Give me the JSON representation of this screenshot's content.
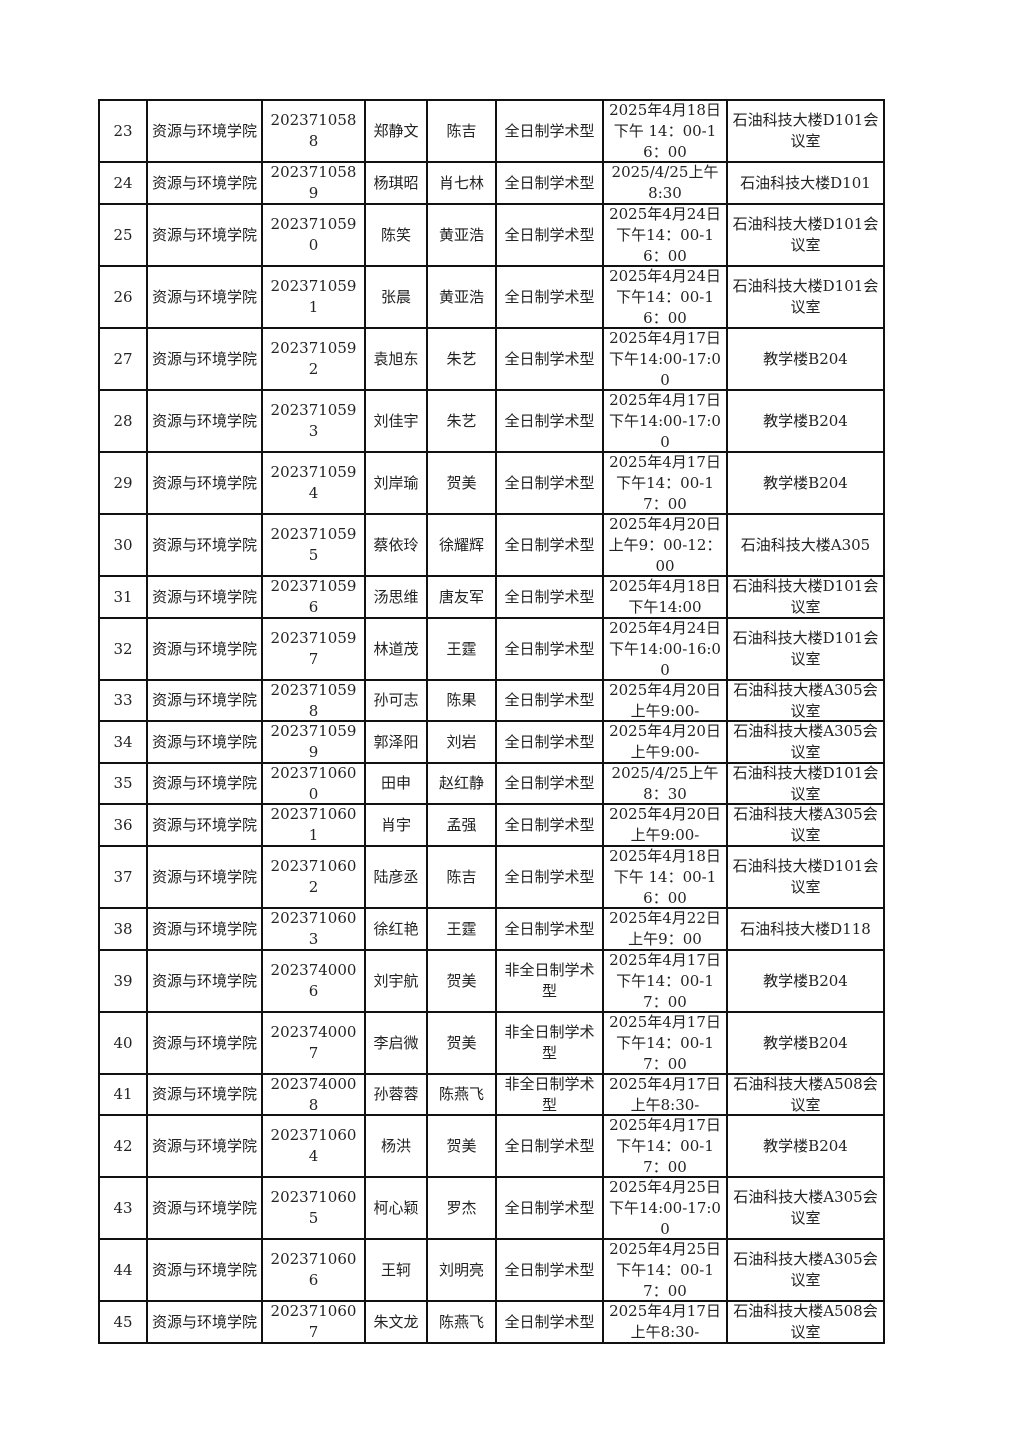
{
  "table": {
    "rows": [
      {
        "no": "23",
        "college": "资源与环境学院",
        "id": "2023710588",
        "name": "郑静文",
        "advisor": "陈吉",
        "type": "全日制学术型",
        "time": "2025年4月18日下午 14：00-16：00",
        "place": "石油科技大楼D101会议室"
      },
      {
        "no": "24",
        "college": "资源与环境学院",
        "id": "2023710589",
        "name": "杨琪昭",
        "advisor": "肖七林",
        "type": "全日制学术型",
        "time": "2025/4/25上午8:30",
        "place": "石油科技大楼D101"
      },
      {
        "no": "25",
        "college": "资源与环境学院",
        "id": "2023710590",
        "name": "陈笑",
        "advisor": "黄亚浩",
        "type": "全日制学术型",
        "time": "2025年4月24日下午14：00-16：00",
        "place": "石油科技大楼D101会议室"
      },
      {
        "no": "26",
        "college": "资源与环境学院",
        "id": "2023710591",
        "name": "张晨",
        "advisor": "黄亚浩",
        "type": "全日制学术型",
        "time": "2025年4月24日下午14：00-16：00",
        "place": "石油科技大楼D101会议室"
      },
      {
        "no": "27",
        "college": "资源与环境学院",
        "id": "2023710592",
        "name": "袁旭东",
        "advisor": "朱艺",
        "type": "全日制学术型",
        "time": "2025年4月17日下午14:00-17:00",
        "place": "教学楼B204"
      },
      {
        "no": "28",
        "college": "资源与环境学院",
        "id": "2023710593",
        "name": "刘佳宇",
        "advisor": "朱艺",
        "type": "全日制学术型",
        "time": "2025年4月17日下午14:00-17:00",
        "place": "教学楼B204"
      },
      {
        "no": "29",
        "college": "资源与环境学院",
        "id": "2023710594",
        "name": "刘岸瑜",
        "advisor": "贺美",
        "type": "全日制学术型",
        "time": "2025年4月17日下午14：00-17：00",
        "place": "教学楼B204"
      },
      {
        "no": "30",
        "college": "资源与环境学院",
        "id": "2023710595",
        "name": "蔡依玲",
        "advisor": "徐耀辉",
        "type": "全日制学术型",
        "time": "2025年4月20日上午9：00-12：00",
        "place": "石油科技大楼A305"
      },
      {
        "no": "31",
        "college": "资源与环境学院",
        "id": "2023710596",
        "name": "汤思维",
        "advisor": "唐友军",
        "type": "全日制学术型",
        "time": "2025年4月18日下午14:00",
        "place": "石油科技大楼D101会议室"
      },
      {
        "no": "32",
        "college": "资源与环境学院",
        "id": "2023710597",
        "name": "林道茂",
        "advisor": "王霆",
        "type": "全日制学术型",
        "time": "2025年4月24日下午14:00-16:00",
        "place": "石油科技大楼D101会议室"
      },
      {
        "no": "33",
        "college": "资源与环境学院",
        "id": "2023710598",
        "name": "孙可志",
        "advisor": "陈果",
        "type": "全日制学术型",
        "time": "2025年4月20日上午9:00-",
        "place": "石油科技大楼A305会议室"
      },
      {
        "no": "34",
        "college": "资源与环境学院",
        "id": "2023710599",
        "name": "郭泽阳",
        "advisor": "刘岩",
        "type": "全日制学术型",
        "time": "2025年4月20日上午9:00-",
        "place": "石油科技大楼A305会议室"
      },
      {
        "no": "35",
        "college": "资源与环境学院",
        "id": "2023710600",
        "name": "田申",
        "advisor": "赵红静",
        "type": "全日制学术型",
        "time": "2025/4/25上午8：30",
        "place": "石油科技大楼D101会议室"
      },
      {
        "no": "36",
        "college": "资源与环境学院",
        "id": "2023710601",
        "name": "肖宇",
        "advisor": "孟强",
        "type": "全日制学术型",
        "time": "2025年4月20日上午9:00-",
        "place": "石油科技大楼A305会议室"
      },
      {
        "no": "37",
        "college": "资源与环境学院",
        "id": "2023710602",
        "name": "陆彦丞",
        "advisor": "陈吉",
        "type": "全日制学术型",
        "time": "2025年4月18日下午 14：00-16：00",
        "place": "石油科技大楼D101会议室"
      },
      {
        "no": "38",
        "college": "资源与环境学院",
        "id": "2023710603",
        "name": "徐红艳",
        "advisor": "王霆",
        "type": "全日制学术型",
        "time": "2025年4月22日上午9：00",
        "place": "石油科技大楼D118"
      },
      {
        "no": "39",
        "college": "资源与环境学院",
        "id": "2023740006",
        "name": "刘宇航",
        "advisor": "贺美",
        "type": "非全日制学术型",
        "time": "2025年4月17日下午14：00-17：00",
        "place": "教学楼B204"
      },
      {
        "no": "40",
        "college": "资源与环境学院",
        "id": "2023740007",
        "name": "李启微",
        "advisor": "贺美",
        "type": "非全日制学术型",
        "time": "2025年4月17日下午14：00-17：00",
        "place": "教学楼B204"
      },
      {
        "no": "41",
        "college": "资源与环境学院",
        "id": "2023740008",
        "name": "孙蓉蓉",
        "advisor": "陈燕飞",
        "type": "非全日制学术型",
        "time": "2025年4月17日上午8:30-",
        "place": "石油科技大楼A508会议室"
      },
      {
        "no": "42",
        "college": "资源与环境学院",
        "id": "2023710604",
        "name": "杨洪",
        "advisor": "贺美",
        "type": "全日制学术型",
        "time": "2025年4月17日下午14：00-17：00",
        "place": "教学楼B204"
      },
      {
        "no": "43",
        "college": "资源与环境学院",
        "id": "2023710605",
        "name": "柯心颖",
        "advisor": "罗杰",
        "type": "全日制学术型",
        "time": "2025年4月25日下午14:00-17:00",
        "place": "石油科技大楼A305会议室"
      },
      {
        "no": "44",
        "college": "资源与环境学院",
        "id": "2023710606",
        "name": "王轲",
        "advisor": "刘明亮",
        "type": "全日制学术型",
        "time": "2025年4月25日下午14：00-17：00",
        "place": "石油科技大楼A305会议室"
      },
      {
        "no": "45",
        "college": "资源与环境学院",
        "id": "2023710607",
        "name": "朱文龙",
        "advisor": "陈燕飞",
        "type": "全日制学术型",
        "time": "2025年4月17日上午8:30-",
        "place": "石油科技大楼A508会议室"
      }
    ]
  }
}
